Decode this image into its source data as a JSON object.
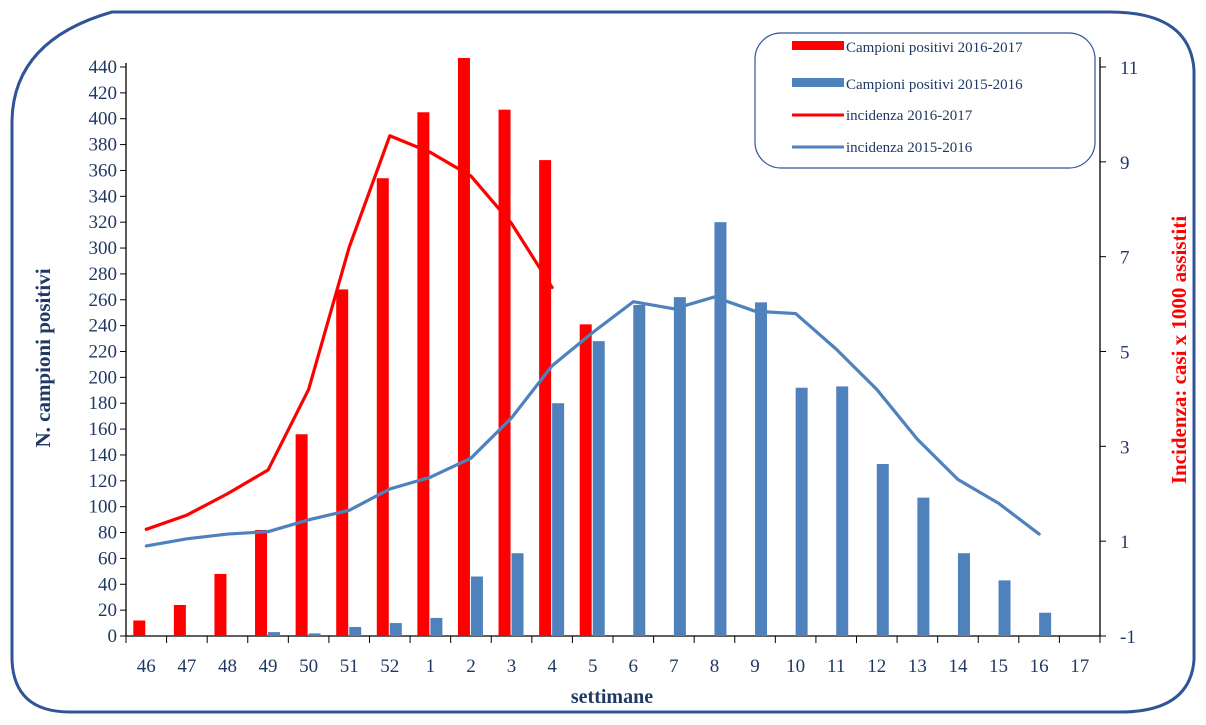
{
  "chart_data": {
    "type": "bar+line",
    "categories": [
      "46",
      "47",
      "48",
      "49",
      "50",
      "51",
      "52",
      "1",
      "2",
      "3",
      "4",
      "5",
      "6",
      "7",
      "8",
      "9",
      "10",
      "11",
      "12",
      "13",
      "14",
      "15",
      "16",
      "17"
    ],
    "xlabel": "settimane",
    "ylabel": "N. campioni positivi",
    "y2label": "Incidenza: casi x 1000 assistiti",
    "ylim": [
      0,
      440
    ],
    "y_ticks": [
      0,
      20,
      40,
      60,
      80,
      100,
      120,
      140,
      160,
      180,
      200,
      220,
      240,
      260,
      280,
      300,
      320,
      340,
      360,
      380,
      400,
      420,
      440
    ],
    "y2lim": [
      -1,
      11
    ],
    "y2_ticks": [
      -1,
      1,
      3,
      5,
      7,
      9,
      11
    ],
    "legend_position": "top-right",
    "series": [
      {
        "name": "Campioni positivi 2016-2017",
        "type": "bar",
        "axis": "left",
        "color": "#ff0000",
        "values": [
          12,
          24,
          48,
          82,
          156,
          268,
          354,
          405,
          447,
          407,
          368,
          241,
          null,
          null,
          null,
          null,
          null,
          null,
          null,
          null,
          null,
          null,
          null,
          null
        ]
      },
      {
        "name": "Campioni positivi 2015-2016",
        "type": "bar",
        "axis": "left",
        "color": "#4f81bd",
        "values": [
          0,
          0,
          0,
          3,
          2,
          7,
          10,
          14,
          46,
          64,
          180,
          228,
          256,
          262,
          320,
          258,
          192,
          193,
          133,
          107,
          64,
          43,
          18,
          null
        ]
      },
      {
        "name": "incidenza 2016-2017",
        "type": "line",
        "axis": "right",
        "color": "#ff0000",
        "values": [
          1.25,
          1.55,
          2.0,
          2.5,
          4.2,
          7.2,
          9.55,
          9.2,
          8.7,
          7.7,
          6.35,
          null,
          null,
          null,
          null,
          null,
          null,
          null,
          null,
          null,
          null,
          null,
          null,
          null
        ]
      },
      {
        "name": "incidenza 2015-2016",
        "type": "line",
        "axis": "right",
        "color": "#4f81bd",
        "values": [
          0.9,
          1.05,
          1.15,
          1.2,
          1.45,
          1.65,
          2.1,
          2.35,
          2.75,
          3.6,
          4.7,
          5.4,
          6.05,
          5.9,
          6.15,
          5.85,
          5.8,
          5.05,
          4.2,
          3.15,
          2.3,
          1.8,
          1.15,
          null
        ]
      }
    ]
  }
}
